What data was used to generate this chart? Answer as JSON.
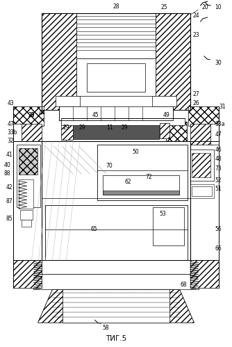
{
  "background_color": "#ffffff",
  "line_color": "#000000",
  "fig_width": 3.34,
  "fig_height": 4.99,
  "dpi": 100,
  "caption": "ΤИГ.5",
  "label_fontsize": 5.5,
  "caption_fontsize": 7.5
}
